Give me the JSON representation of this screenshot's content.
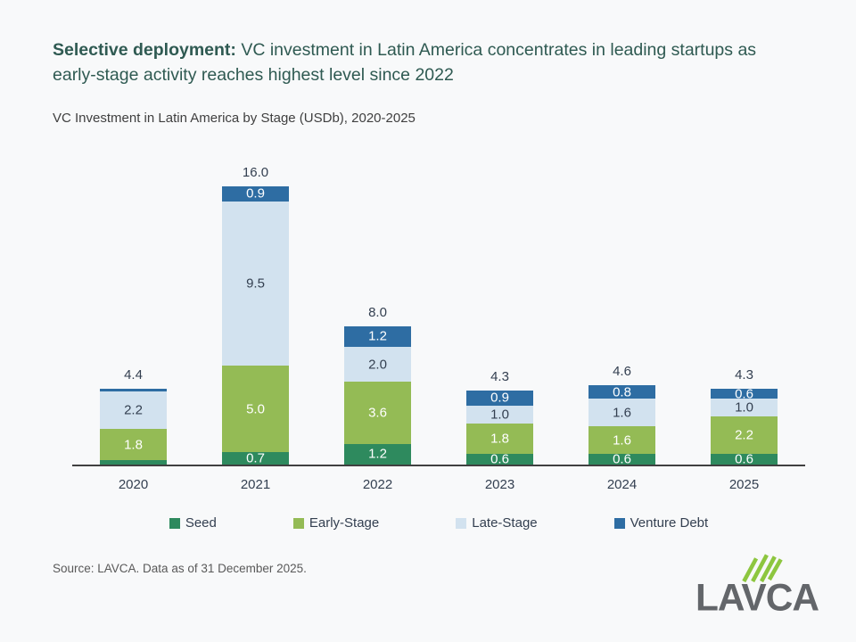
{
  "page": {
    "background": "#f8f9fa"
  },
  "header": {
    "title_bold": "Selective deployment:",
    "title_rest": " VC investment in Latin America concentrates in leading startups as early-stage activity reaches highest level since 2022",
    "title_color": "#2f5a52",
    "subtitle": "VC Investment in Latin America by Stage (USDb), 2020-2025"
  },
  "chart_data": {
    "type": "bar",
    "stacked": true,
    "title": "VC Investment in Latin America by Stage (USDb), 2020-2025",
    "unit": "USDb",
    "categories": [
      "2020",
      "2021",
      "2022",
      "2023",
      "2024",
      "2025"
    ],
    "series": [
      {
        "name": "Seed",
        "color": "#2e8a5e",
        "label_color": "#ffffff",
        "values": [
          0.25,
          0.7,
          1.2,
          0.6,
          0.6,
          0.6
        ],
        "labels": [
          "",
          "0.7",
          "1.2",
          "0.6",
          "0.6",
          "0.6"
        ]
      },
      {
        "name": "Early-Stage",
        "color": "#94bb55",
        "label_color": "#ffffff",
        "values": [
          1.8,
          5.0,
          3.6,
          1.8,
          1.6,
          2.2
        ],
        "labels": [
          "1.8",
          "5.0",
          "3.6",
          "1.8",
          "1.6",
          "2.2"
        ]
      },
      {
        "name": "Late-Stage",
        "color": "#d2e2ef",
        "label_color": "#333f50",
        "values": [
          2.2,
          9.5,
          2.0,
          1.0,
          1.6,
          1.0
        ],
        "labels": [
          "2.2",
          "9.5",
          "2.0",
          "1.0",
          "1.6",
          "1.0"
        ]
      },
      {
        "name": "Venture Debt",
        "color": "#2e6da3",
        "label_color": "#ffffff",
        "values": [
          0.15,
          0.9,
          1.2,
          0.9,
          0.8,
          0.6
        ],
        "labels": [
          "",
          "0.9",
          "1.2",
          "0.9",
          "0.8",
          "0.6"
        ]
      }
    ],
    "totals": [
      "4.4",
      "16.0",
      "8.0",
      "4.3",
      "4.6",
      "4.3"
    ],
    "ylim": [
      0,
      16.5
    ],
    "grid": false,
    "legend_position": "bottom",
    "xlabel": "",
    "ylabel": ""
  },
  "footer": {
    "source": "Source: LAVCA. Data as of 31 December 2025.",
    "logo_text": "LAVCA",
    "logo_gray": "#63666a",
    "logo_green": "#8dc63f"
  }
}
